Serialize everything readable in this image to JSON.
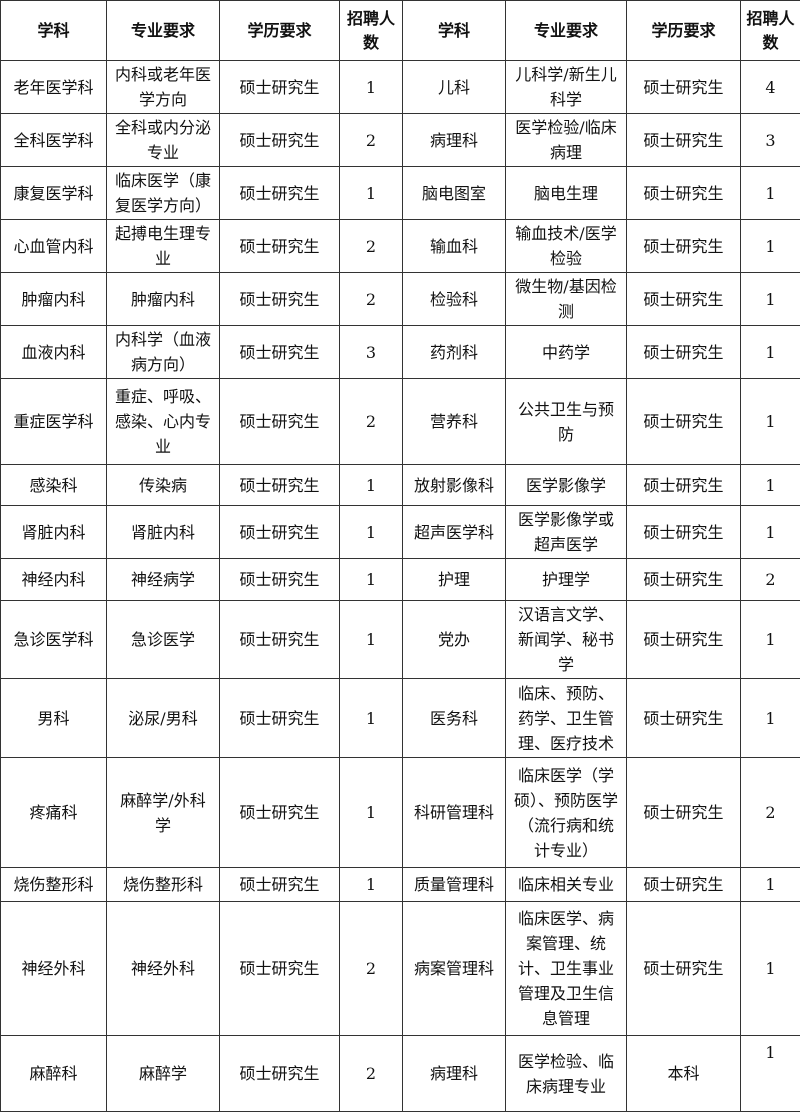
{
  "headers": [
    "学科",
    "专业要求",
    "学历要求",
    "招聘人数",
    "学科",
    "专业要求",
    "学历要求",
    "招聘人数"
  ],
  "rows": [
    [
      [
        "老年医学科",
        "内科或老年医学方向",
        "硕士研究生",
        "1"
      ],
      [
        "儿科",
        "儿科学/新生儿科学",
        "硕士研究生",
        "4"
      ]
    ],
    [
      [
        "全科医学科",
        "全科或内分泌专业",
        "硕士研究生",
        "2"
      ],
      [
        "病理科",
        "医学检验/临床病理",
        "硕士研究生",
        "3"
      ]
    ],
    [
      [
        "康复医学科",
        "临床医学（康复医学方向）",
        "硕士研究生",
        "1"
      ],
      [
        "脑电图室",
        "脑电生理",
        "硕士研究生",
        "1"
      ]
    ],
    [
      [
        "心血管内科",
        "起搏电生理专业",
        "硕士研究生",
        "2"
      ],
      [
        "输血科",
        "输血技术/医学检验",
        "硕士研究生",
        "1"
      ]
    ],
    [
      [
        "肿瘤内科",
        "肿瘤内科",
        "硕士研究生",
        "2"
      ],
      [
        "检验科",
        "微生物/基因检测",
        "硕士研究生",
        "1"
      ]
    ],
    [
      [
        "血液内科",
        "内科学（血液病方向）",
        "硕士研究生",
        "3"
      ],
      [
        "药剂科",
        "中药学",
        "硕士研究生",
        "1"
      ]
    ],
    [
      [
        "重症医学科",
        "重症、呼吸、感染、心内专业",
        "硕士研究生",
        "2"
      ],
      [
        "营养科",
        "公共卫生与预防",
        "硕士研究生",
        "1"
      ]
    ],
    [
      [
        "感染科",
        "传染病",
        "硕士研究生",
        "1"
      ],
      [
        "放射影像科",
        "医学影像学",
        "硕士研究生",
        "1"
      ]
    ],
    [
      [
        "肾脏内科",
        "肾脏内科",
        "硕士研究生",
        "1"
      ],
      [
        "超声医学科",
        "医学影像学或超声医学",
        "硕士研究生",
        "1"
      ]
    ],
    [
      [
        "神经内科",
        "神经病学",
        "硕士研究生",
        "1"
      ],
      [
        "护理",
        "护理学",
        "硕士研究生",
        "2"
      ]
    ],
    [
      [
        "急诊医学科",
        "急诊医学",
        "硕士研究生",
        "1"
      ],
      [
        "党办",
        "汉语言文学、新闻学、秘书学",
        "硕士研究生",
        "1"
      ]
    ],
    [
      [
        "男科",
        "泌尿/男科",
        "硕士研究生",
        "1"
      ],
      [
        "医务科",
        "临床、预防、药学、卫生管理、医疗技术",
        "硕士研究生",
        "1"
      ]
    ],
    [
      [
        "疼痛科",
        "麻醉学/外科学",
        "硕士研究生",
        "1"
      ],
      [
        "科研管理科",
        "临床医学（学硕）、预防医学（流行病和统计专业）",
        "硕士研究生",
        "2"
      ]
    ],
    [
      [
        "烧伤整形科",
        "烧伤整形科",
        "硕士研究生",
        "1"
      ],
      [
        "质量管理科",
        "临床相关专业",
        "硕士研究生",
        "1"
      ]
    ],
    [
      [
        "神经外科",
        "神经外科",
        "硕士研究生",
        "2"
      ],
      [
        "病案管理科",
        "临床医学、病案管理、统计、卫生事业管理及卫生信息管理",
        "硕士研究生",
        "1"
      ]
    ],
    [
      [
        "麻醉科",
        "麻醉学",
        "硕士研究生",
        "2"
      ],
      [
        "病理科",
        "医学检验、临床病理专业",
        "本科",
        "1"
      ]
    ]
  ]
}
